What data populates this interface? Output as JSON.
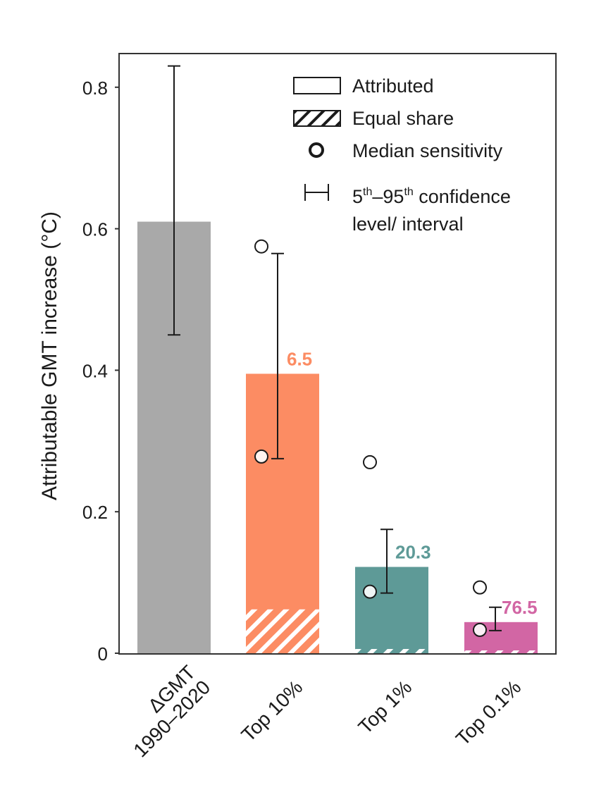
{
  "chart_data": {
    "type": "bar",
    "ylabel": "Attributable GMT increase (°C)",
    "ylim": [
      0,
      0.85
    ],
    "yticks": [
      {
        "value": 0,
        "label": "0"
      },
      {
        "value": 0.2,
        "label": "0.2"
      },
      {
        "value": 0.4,
        "label": "0.4"
      },
      {
        "value": 0.6,
        "label": "0.6"
      },
      {
        "value": 0.8,
        "label": "0.8"
      }
    ],
    "bars": [
      {
        "label_lines": [
          "ΔGMT",
          "1990–2020"
        ],
        "value": 0.61,
        "equal_share": null,
        "ci_low": 0.45,
        "ci_high": 0.83,
        "median_sensitivity": [],
        "color": "#a9a9a9",
        "ratio_label": null
      },
      {
        "label_lines": [
          "Top 10%"
        ],
        "value": 0.395,
        "equal_share": 0.062,
        "ci_low": 0.275,
        "ci_high": 0.565,
        "median_sensitivity": [
          0.575,
          0.278
        ],
        "color": "#fc8c63",
        "ratio_label": "6.5"
      },
      {
        "label_lines": [
          "Top 1%"
        ],
        "value": 0.122,
        "equal_share": 0.006,
        "ci_low": 0.085,
        "ci_high": 0.175,
        "median_sensitivity": [
          0.27,
          0.087
        ],
        "color": "#5e9a97",
        "ratio_label": "20.3"
      },
      {
        "label_lines": [
          "Top 0.1%"
        ],
        "value": 0.044,
        "equal_share": 0.0006,
        "ci_low": 0.032,
        "ci_high": 0.065,
        "median_sensitivity": [
          0.093,
          0.033
        ],
        "color": "#d266a4",
        "ratio_label": "76.5"
      }
    ],
    "legend": {
      "attributed": "Attributed",
      "equal_share": "Equal share",
      "median_sensitivity": "Median sensitivity",
      "ci_pre1": "5",
      "ci_sup1": "th",
      "ci_mid": "–95",
      "ci_sup2": "th",
      "ci_post": " confidence",
      "ci_line2": "level/ interval"
    }
  }
}
